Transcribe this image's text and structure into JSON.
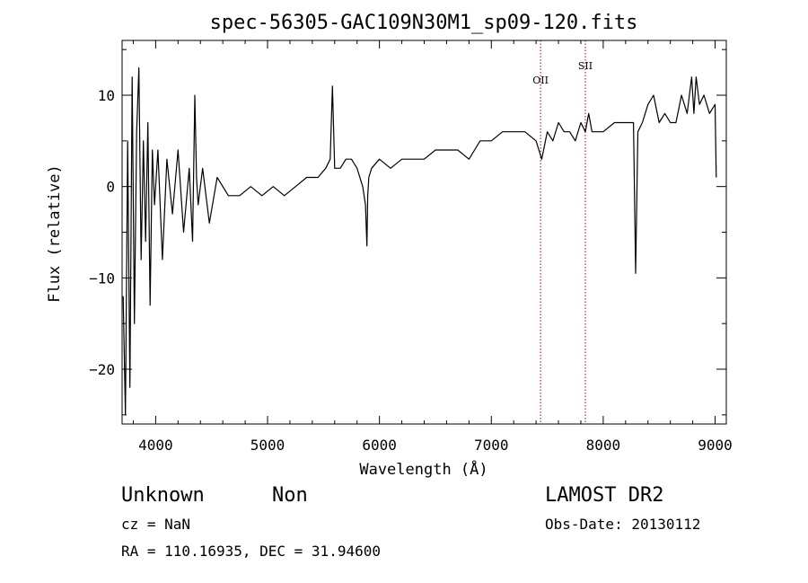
{
  "chart_data": {
    "type": "line",
    "title": "spec-56305-GAC109N30M1_sp09-120.fits",
    "xlabel": "Wavelength (Å)",
    "ylabel": "Flux (relative)",
    "xlim": [
      3700,
      9100
    ],
    "ylim": [
      -26,
      16
    ],
    "xticks": [
      4000,
      5000,
      6000,
      7000,
      8000,
      9000
    ],
    "yticks": [
      -20,
      -10,
      0,
      10
    ],
    "xtick_labels": [
      "4000",
      "5000",
      "6000",
      "7000",
      "8000",
      "9000"
    ],
    "ytick_labels": [
      "−20",
      "−10",
      "0",
      "10"
    ],
    "grid": false,
    "line_color": "#000000",
    "marker_color": "#aa0000",
    "series": [
      {
        "x": [
          3710,
          3730,
          3750,
          3770,
          3790,
          3810,
          3830,
          3850,
          3870,
          3890,
          3910,
          3930,
          3950,
          3970,
          3990,
          4020,
          4060,
          4100,
          4150,
          4200,
          4250,
          4300,
          4330,
          4350,
          4365,
          4380,
          4420,
          4480,
          4550,
          4650,
          4750,
          4850,
          4950,
          5050,
          5150,
          5250,
          5350,
          5450,
          5520,
          5560,
          5580,
          5600,
          5650,
          5700,
          5750,
          5800,
          5850,
          5875,
          5888,
          5895,
          5905,
          5930,
          6000,
          6100,
          6200,
          6300,
          6400,
          6500,
          6600,
          6700,
          6800,
          6850,
          6900,
          7000,
          7100,
          7200,
          7300,
          7400,
          7450,
          7500,
          7550,
          7600,
          7650,
          7700,
          7750,
          7800,
          7840,
          7870,
          7900,
          8000,
          8100,
          8200,
          8270,
          8290,
          8310,
          8350,
          8400,
          8450,
          8500,
          8550,
          8600,
          8650,
          8700,
          8750,
          8790,
          8810,
          8830,
          8860,
          8900,
          8950,
          9000,
          9010
        ],
        "y": [
          -12,
          -25,
          5,
          -22,
          12,
          -15,
          6,
          13,
          -8,
          5,
          -6,
          7,
          -13,
          4,
          -2,
          4,
          -8,
          3,
          -3,
          4,
          -5,
          2,
          -6,
          10,
          1,
          -2,
          2,
          -4,
          1,
          -1,
          -1,
          0,
          -1,
          0,
          -1,
          0,
          1,
          1,
          2,
          3,
          11,
          2,
          2,
          3,
          3,
          2,
          0,
          -2,
          -6.5,
          -1,
          1,
          2,
          3,
          2,
          3,
          3,
          3,
          4,
          4,
          4,
          3,
          4,
          5,
          5,
          6,
          6,
          6,
          5,
          3,
          6,
          5,
          7,
          6,
          6,
          5,
          7,
          6,
          8,
          6,
          6,
          7,
          7,
          7,
          -9.5,
          6,
          7,
          9,
          10,
          7,
          8,
          7,
          7,
          10,
          8,
          12,
          8,
          12,
          9,
          10,
          8,
          9,
          1
        ]
      }
    ],
    "annotations": [
      {
        "label": "OII",
        "x": 7440
      },
      {
        "label": "SII",
        "x": 7840
      }
    ]
  },
  "info": {
    "object_class": "Unknown",
    "subclass": "Non",
    "survey": "LAMOST DR2",
    "cz": "cz = NaN",
    "obs_date": "Obs-Date: 20130112",
    "coords": "RA = 110.16935, DEC =  31.94600"
  }
}
